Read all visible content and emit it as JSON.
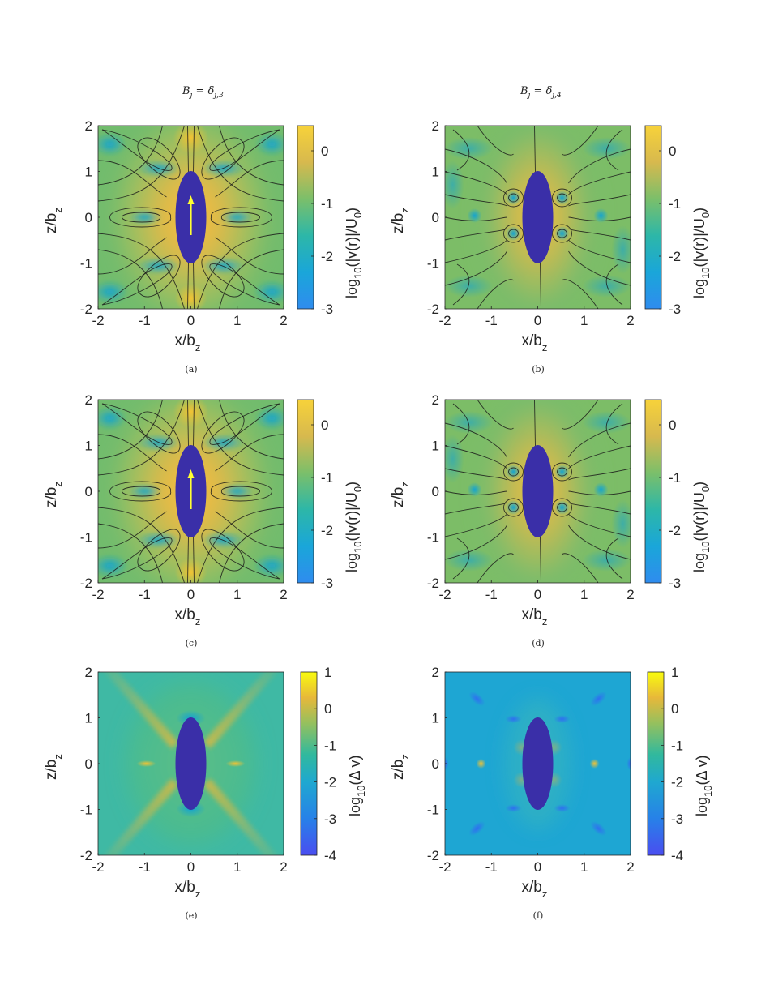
{
  "columns": [
    {
      "title_main": "B",
      "title_sub": "j",
      "title_rhs": " = δ",
      "title_rhs_sub": "j,3"
    },
    {
      "title_main": "B",
      "title_sub": "j",
      "title_rhs": " = δ",
      "title_rhs_sub": "j,4"
    }
  ],
  "panels": [
    {
      "id": "a",
      "caption": "(a)",
      "cb_label_main": "log",
      "cb_label_sub": "10",
      "cb_label_rest": "(|v(r)|/U",
      "cb_label_sub2": "0",
      "cb_label_end": ")",
      "cb_ticks": [
        "0",
        "-1",
        "-2",
        "-3"
      ],
      "colormap": "parula",
      "arrow": true,
      "streamlines": true,
      "mode": "vel3"
    },
    {
      "id": "b",
      "caption": "(b)",
      "cb_label_main": "log",
      "cb_label_sub": "10",
      "cb_label_rest": "(|v(r)|/U",
      "cb_label_sub2": "0",
      "cb_label_end": ")",
      "cb_ticks": [
        "0",
        "-1",
        "-2",
        "-3"
      ],
      "colormap": "parula",
      "arrow": false,
      "streamlines": true,
      "mode": "vel4"
    },
    {
      "id": "c",
      "caption": "(c)",
      "cb_label_main": "log",
      "cb_label_sub": "10",
      "cb_label_rest": "(|v(r)|/U",
      "cb_label_sub2": "0",
      "cb_label_end": ")",
      "cb_ticks": [
        "0",
        "-1",
        "-2",
        "-3"
      ],
      "colormap": "parula",
      "arrow": true,
      "streamlines": true,
      "mode": "vel3"
    },
    {
      "id": "d",
      "caption": "(d)",
      "cb_label_main": "log",
      "cb_label_sub": "10",
      "cb_label_rest": "(|v(r)|/U",
      "cb_label_sub2": "0",
      "cb_label_end": ")",
      "cb_ticks": [
        "0",
        "-1",
        "-2",
        "-3"
      ],
      "colormap": "parula",
      "arrow": false,
      "streamlines": true,
      "mode": "vel4"
    },
    {
      "id": "e",
      "caption": "(e)",
      "cb_label_main": "log",
      "cb_label_sub": "10",
      "cb_label_rest": "(Δ v)",
      "cb_label_sub2": "",
      "cb_label_end": "",
      "cb_ticks": [
        "1",
        "0",
        "-1",
        "-2",
        "-3",
        "-4"
      ],
      "colormap": "parula",
      "arrow": false,
      "streamlines": false,
      "mode": "err3"
    },
    {
      "id": "f",
      "caption": "(f)",
      "cb_label_main": "log",
      "cb_label_sub": "10",
      "cb_label_rest": "(Δ v)",
      "cb_label_sub2": "",
      "cb_label_end": "",
      "cb_ticks": [
        "1",
        "0",
        "-1",
        "-2",
        "-3",
        "-4"
      ],
      "colormap": "parula",
      "arrow": false,
      "streamlines": false,
      "mode": "err4"
    }
  ],
  "axes": {
    "x_ticks": [
      "-2",
      "-1",
      "0",
      "1",
      "2"
    ],
    "y_ticks": [
      "2",
      "1",
      "0",
      "-1",
      "-2"
    ],
    "xlabel_main": "x/b",
    "xlabel_sub": "z",
    "ylabel_main": "z/b",
    "ylabel_sub": "z"
  },
  "colors": {
    "body": "#3a2fa8",
    "arrow": "#ffff33",
    "parula_stops": [
      "#352a87",
      "#0363e1",
      "#1485d4",
      "#06a7c6",
      "#38b99e",
      "#92bf73",
      "#d9ba56",
      "#fcce2e",
      "#f9fb0e"
    ]
  }
}
